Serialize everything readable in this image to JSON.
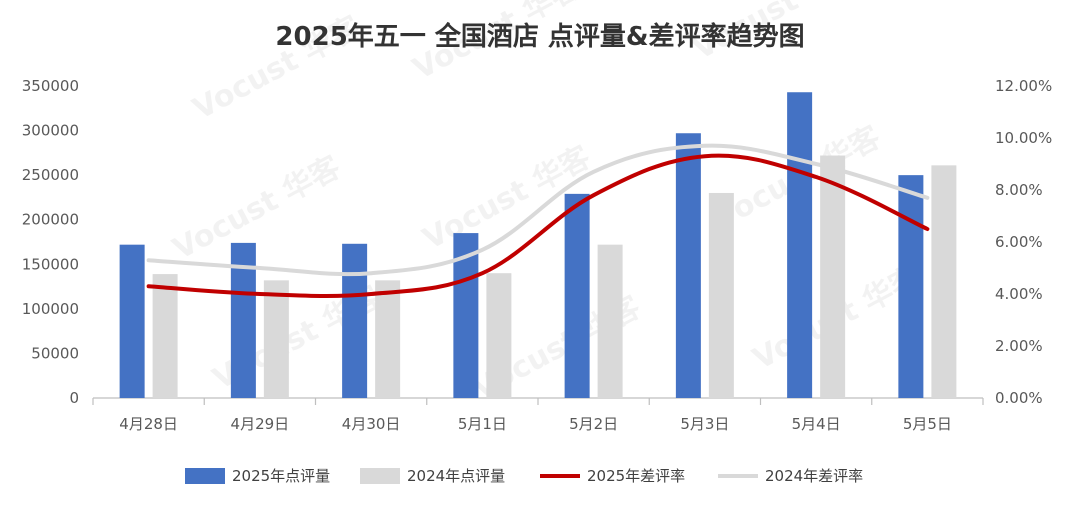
{
  "chart_data": {
    "type": "bar",
    "title": "2025年五一 全国酒店 点评量&差评率趋势图",
    "categories": [
      "4月28日",
      "4月29日",
      "4月30日",
      "5月1日",
      "5月2日",
      "5月3日",
      "5月4日",
      "5月5日"
    ],
    "series": [
      {
        "name": "2025年点评量",
        "kind": "bar",
        "axis": "left",
        "color": "#4472C4",
        "values": [
          172000,
          174000,
          173000,
          185000,
          229000,
          297000,
          343000,
          250000
        ]
      },
      {
        "name": "2024年点评量",
        "kind": "bar",
        "axis": "left",
        "color": "#D9D9D9",
        "values": [
          139000,
          132000,
          132000,
          140000,
          172000,
          230000,
          272000,
          261000
        ]
      },
      {
        "name": "2025年差评率",
        "kind": "line",
        "axis": "right",
        "color": "#C00000",
        "values": [
          4.3,
          4.0,
          4.0,
          4.8,
          7.8,
          9.3,
          8.5,
          6.5
        ]
      },
      {
        "name": "2024年差评率",
        "kind": "line",
        "axis": "right",
        "color": "#D9D9D9",
        "values": [
          5.3,
          5.0,
          4.8,
          5.7,
          8.7,
          9.7,
          9.0,
          7.7
        ]
      }
    ],
    "y_left": {
      "min": 0,
      "max": 350000,
      "step": 50000,
      "ticks": [
        "0",
        "50000",
        "100000",
        "150000",
        "200000",
        "250000",
        "300000",
        "350000"
      ]
    },
    "y_right": {
      "min": 0,
      "max": 12,
      "step": 2,
      "ticks": [
        "0.00%",
        "2.00%",
        "4.00%",
        "6.00%",
        "8.00%",
        "10.00%",
        "12.00%"
      ]
    },
    "grid": false,
    "legend": "bottom",
    "watermark": "Vocust 华客"
  }
}
